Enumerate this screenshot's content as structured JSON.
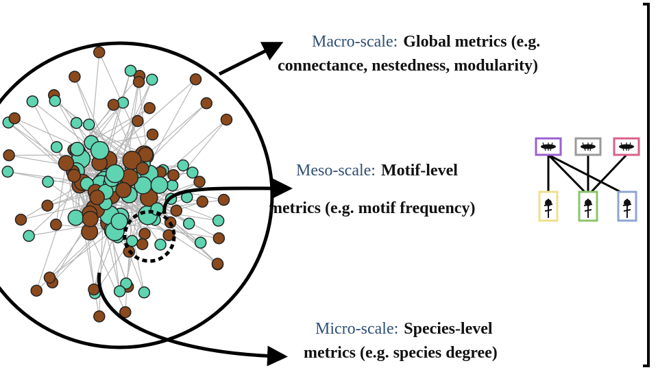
{
  "scales": [
    {
      "label": "Macro-scale:",
      "lines": [
        "Global metrics (e.g.",
        "connectance, nestedness, modularity)"
      ]
    },
    {
      "label": "Meso-scale:",
      "lines": [
        "Motif-level",
        "metrics (e.g. motif frequency)"
      ]
    },
    {
      "label": "Micro-scale:",
      "lines": [
        "Species-level",
        "metrics (e.g. species degree)"
      ]
    }
  ]
}
